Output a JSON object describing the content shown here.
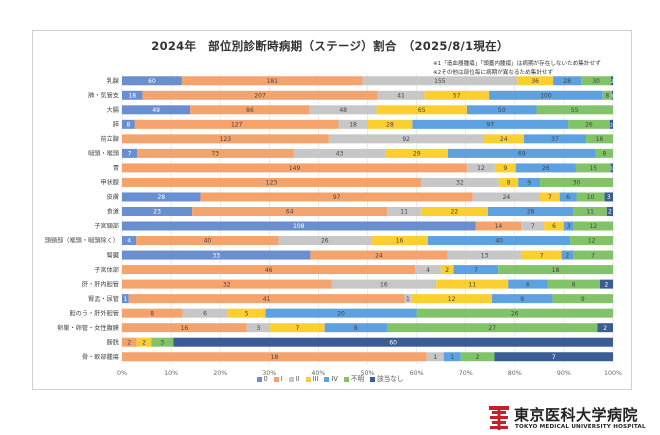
{
  "chart_data": {
    "type": "bar",
    "orientation": "horizontal",
    "stacked": "percent",
    "title": "2024年　部位別診断時病期（ステージ）割合　（2025/8/1現在）",
    "notes": [
      "※1「造血器腫瘍」「頭蓋内腫瘍」は病期が存在しないため集計せず",
      "※2その他は部位毎に病期が異なるため集計せず"
    ],
    "xlim": [
      0,
      100
    ],
    "xticks": [
      "0%",
      "10%",
      "20%",
      "30%",
      "40%",
      "50%",
      "60%",
      "70%",
      "80%",
      "90%",
      "100%"
    ],
    "grid": true,
    "legend_position": "bottom",
    "categories": [
      "乳腺",
      "肺・気管支",
      "大腸",
      "膵",
      "前立腺",
      "咽頭・喉頭",
      "胃",
      "甲状腺",
      "皮膚",
      "食道",
      "子宮頸部",
      "頭頸部（喉頭・咽頭除く）",
      "腎臓",
      "子宮体部",
      "肝・肝内胆管",
      "腎盂・尿管",
      "胆のう・肝外胆管",
      "卵巣・卵管・女性腹膜",
      "膀胱",
      "骨・軟部腫瘍"
    ],
    "series": [
      {
        "name": "0",
        "color": "#6a8fd0",
        "values": [
          60,
          18,
          49,
          8,
          0,
          7,
          0,
          0,
          28,
          23,
          108,
          4,
          33,
          0,
          0,
          1,
          0,
          0,
          0,
          0
        ]
      },
      {
        "name": "I",
        "color": "#f4a36c",
        "values": [
          181,
          207,
          86,
          127,
          123,
          73,
          149,
          123,
          97,
          64,
          14,
          40,
          24,
          46,
          32,
          41,
          8,
          16,
          2,
          18
        ]
      },
      {
        "name": "II",
        "color": "#c7c7c7",
        "values": [
          155,
          41,
          48,
          18,
          92,
          43,
          12,
          32,
          24,
          11,
          7,
          26,
          13,
          4,
          16,
          1,
          6,
          3,
          0,
          1
        ]
      },
      {
        "name": "III",
        "color": "#fbcf2f",
        "values": [
          36,
          57,
          65,
          28,
          24,
          29,
          9,
          8,
          7,
          22,
          6,
          16,
          7,
          2,
          11,
          12,
          5,
          7,
          2,
          0
        ]
      },
      {
        "name": "IV",
        "color": "#5da1e0",
        "values": [
          28,
          100,
          50,
          97,
          37,
          69,
          26,
          9,
          6,
          28,
          3,
          40,
          2,
          7,
          6,
          9,
          20,
          8,
          0,
          1
        ]
      },
      {
        "name": "不明",
        "color": "#82c36a",
        "values": [
          30,
          8,
          55,
          26,
          16,
          8,
          15,
          30,
          10,
          11,
          12,
          12,
          7,
          18,
          8,
          9,
          26,
          27,
          3,
          2
        ]
      },
      {
        "name": "該当なし",
        "color": "#3b5d94",
        "values": [
          2,
          1,
          0,
          2,
          0,
          0,
          1,
          0,
          3,
          2,
          0,
          0,
          0,
          0,
          2,
          0,
          0,
          2,
          60,
          7
        ]
      }
    ]
  },
  "branding": {
    "name_ja": "東京医科大学病院",
    "name_en": "TOKYO MEDICAL UNIVERSITY HOSPITAL"
  }
}
